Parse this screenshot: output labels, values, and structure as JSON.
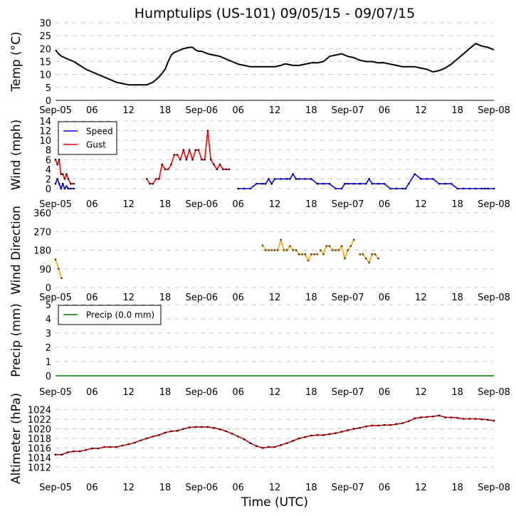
{
  "title": "Humptulips (US-101) 09/05/15 - 09/07/15",
  "xlabel": "Time (UTC)",
  "x_ticks": [
    "Sep-05",
    "06",
    "12",
    "18",
    "Sep-06",
    "06",
    "12",
    "18",
    "Sep-07",
    "06",
    "12",
    "18",
    "Sep-08"
  ],
  "x_range_hours": [
    0,
    72
  ],
  "colors": {
    "temp": "#000000",
    "speed": "#0000ff",
    "gust": "#ff0000",
    "direction": "#ffa500",
    "direction_marker": "#5a3a10",
    "precip": "#008000",
    "altimeter": "#cc0000",
    "altimeter_marker": "#2a0000",
    "grid": "#c8c8c8"
  },
  "chart_data": [
    {
      "type": "line",
      "id": "temp",
      "ylabel": "Temp (°C)",
      "ylim": [
        0,
        30
      ],
      "yticks": [
        0,
        5,
        10,
        15,
        20,
        25,
        30
      ],
      "grid": true,
      "series": [
        {
          "name": "Temp",
          "x": [
            0,
            0.5,
            1,
            1.5,
            2,
            3,
            4,
            5,
            6,
            7,
            8,
            9,
            10,
            11,
            12,
            12.5,
            13,
            14,
            15,
            16,
            17,
            18,
            18.5,
            19,
            19.5,
            20,
            21,
            22,
            22.5,
            23,
            23.5,
            24,
            25,
            26,
            27,
            28,
            29,
            30,
            31,
            32,
            33,
            34,
            35,
            36,
            37,
            37.5,
            38,
            39,
            40,
            41,
            42,
            43,
            44,
            44.5,
            45,
            46,
            47,
            48,
            49,
            50,
            51,
            52,
            53,
            54,
            55,
            56,
            57,
            58,
            59,
            60,
            61,
            62,
            63,
            63.5,
            64,
            65,
            66,
            66.5,
            67,
            67.5,
            68,
            68.5,
            69,
            69.5,
            70,
            71,
            72
          ],
          "values": [
            19.5,
            18,
            17,
            16.5,
            16,
            15,
            13.5,
            12,
            11,
            10,
            9,
            8,
            7,
            6.5,
            6,
            6,
            6,
            6,
            6,
            7,
            9,
            12,
            15,
            17.5,
            18.5,
            19,
            20,
            20.5,
            20.5,
            19.5,
            19,
            19,
            18,
            17.5,
            17,
            16,
            15,
            14,
            13.5,
            13,
            13,
            13,
            13,
            13,
            13.5,
            14,
            14,
            13.5,
            13.5,
            14,
            14.5,
            14.5,
            15,
            16,
            17,
            17.5,
            18,
            17,
            16.5,
            15.5,
            15,
            15,
            14.5,
            14.5,
            14,
            13.5,
            13,
            13,
            13,
            12.5,
            12,
            11,
            11.5,
            12,
            12.5,
            14,
            16,
            17,
            18,
            19,
            20,
            21,
            22,
            21.5,
            21,
            20.5,
            19.5
          ]
        }
      ]
    },
    {
      "type": "line",
      "id": "wind",
      "ylabel": "Wind (mph)",
      "ylim": [
        0,
        14
      ],
      "yticks": [
        0,
        2,
        4,
        6,
        8,
        10,
        12,
        14
      ],
      "grid": true,
      "legend": {
        "placement": "top-left",
        "entries": [
          "Speed",
          "Gust"
        ]
      },
      "series": [
        {
          "name": "Speed",
          "segments": [
            {
              "x": [
                0,
                0.3,
                0.6,
                0.9,
                1.2,
                1.5,
                1.8,
                2.1,
                2.5,
                3
              ],
              "values": [
                1,
                2,
                1,
                0,
                1,
                0,
                0.5,
                0,
                0,
                0
              ]
            },
            {
              "x": [
                30,
                31,
                32,
                33,
                34,
                34.5,
                35,
                35.5,
                36,
                37,
                38,
                38.5,
                39,
                39.5,
                40,
                41,
                42,
                43,
                44,
                45,
                46,
                47,
                47.5,
                48,
                49,
                50,
                51,
                51.5,
                52,
                53,
                54,
                55,
                56,
                57,
                57.5,
                58,
                59,
                60,
                61,
                62,
                63,
                64,
                65,
                66,
                67,
                68,
                69,
                70,
                70.5,
                71,
                72
              ],
              "values": [
                0,
                0,
                0,
                1,
                1,
                1,
                2,
                1,
                2,
                2,
                2,
                2,
                3,
                2,
                2,
                2,
                2,
                1,
                1,
                1,
                0,
                0,
                1,
                1,
                1,
                1,
                1,
                2,
                1,
                1,
                1,
                0,
                0,
                0,
                0,
                1,
                3,
                2,
                2,
                2,
                1,
                1,
                1,
                0,
                0,
                0,
                0,
                0,
                0,
                0,
                0
              ]
            }
          ]
        },
        {
          "name": "Gust",
          "segments": [
            {
              "x": [
                0,
                0.3,
                0.6,
                0.9,
                1.2,
                1.5,
                1.8,
                2.1,
                2.5,
                3
              ],
              "values": [
                6,
                5,
                6,
                3,
                3,
                2,
                3,
                2,
                1,
                1
              ]
            },
            {
              "x": [
                15,
                15.5,
                16,
                16.5,
                17,
                17.5,
                18,
                18.5,
                19,
                19.5,
                20,
                20.5,
                21,
                21.5,
                22,
                22.5,
                23,
                23.5,
                24,
                24.5,
                25,
                25.5,
                26,
                26.5,
                27,
                27.5,
                28,
                28.5
              ],
              "values": [
                2,
                1,
                1,
                2,
                2,
                5,
                4,
                4,
                5,
                7,
                7,
                6,
                8,
                6,
                8,
                6,
                8,
                8,
                6,
                6,
                12,
                6,
                5,
                4,
                5,
                4,
                4,
                4
              ]
            }
          ]
        }
      ]
    },
    {
      "type": "line",
      "id": "direction",
      "ylabel": "Wind Direction",
      "ylim": [
        0,
        360
      ],
      "yticks": [
        0,
        90,
        180,
        270,
        360
      ],
      "grid": true,
      "series": [
        {
          "name": "Direction",
          "segments": [
            {
              "x": [
                0,
                0.5,
                1
              ],
              "values": [
                135,
                90,
                45
              ]
            },
            {
              "x": [
                34,
                34.5,
                35,
                35.5,
                36,
                36.5,
                37,
                37.5,
                38,
                38.5,
                39,
                39.5,
                40,
                40.5,
                41,
                41.5,
                42,
                42.5,
                43
              ],
              "values": [
                203,
                180,
                180,
                180,
                180,
                180,
                230,
                180,
                180,
                200,
                180,
                180,
                160,
                160,
                160,
                130,
                160,
                160,
                160
              ]
            },
            {
              "x": [
                43.5,
                44,
                44.5,
                45,
                45.5,
                46,
                46.5,
                47,
                47.5,
                48,
                48.5,
                49
              ],
              "values": [
                180,
                160,
                200,
                200,
                180,
                180,
                180,
                200,
                140,
                180,
                200,
                230
              ]
            },
            {
              "x": [
                50,
                50.5,
                51,
                51.5,
                52,
                52.5,
                53
              ],
              "values": [
                160,
                160,
                140,
                120,
                160,
                160,
                140
              ]
            }
          ]
        }
      ]
    },
    {
      "type": "line",
      "id": "precip",
      "ylabel": "Precip (mm)",
      "ylim": [
        0,
        5
      ],
      "yticks": [
        0,
        1,
        2,
        3,
        4,
        5
      ],
      "grid": true,
      "legend": {
        "placement": "top-left",
        "entries": [
          "Precip (0.0 mm)"
        ]
      },
      "series": [
        {
          "name": "Precip (0.0 mm)",
          "x": [
            0,
            72
          ],
          "values": [
            0,
            0
          ]
        }
      ]
    },
    {
      "type": "line",
      "id": "altimeter",
      "ylabel": "Altimeter (hPa)",
      "ylim": [
        1011,
        1025
      ],
      "yticks": [
        1012,
        1014,
        1016,
        1018,
        1020,
        1022,
        1024
      ],
      "grid": true,
      "series": [
        {
          "name": "Altimeter",
          "x": [
            0,
            1,
            2,
            3,
            4,
            5,
            6,
            7,
            8,
            9,
            10,
            11,
            12,
            13,
            14,
            15,
            16,
            17,
            18,
            19,
            20,
            21,
            22,
            23,
            24,
            25,
            26,
            27,
            28,
            29,
            30,
            31,
            32,
            33,
            34,
            35,
            36,
            37,
            38,
            39,
            40,
            41,
            42,
            43,
            44,
            45,
            46,
            47,
            48,
            49,
            50,
            51,
            52,
            53,
            54,
            55,
            56,
            57,
            58,
            59,
            60,
            61,
            62,
            63,
            64,
            65,
            66,
            67,
            68,
            69,
            70,
            71,
            72
          ],
          "values": [
            1014.6,
            1014.6,
            1015.1,
            1015.3,
            1015.3,
            1015.6,
            1015.9,
            1015.9,
            1016.2,
            1016.2,
            1016.2,
            1016.5,
            1016.8,
            1017.1,
            1017.6,
            1018,
            1018.4,
            1018.7,
            1019.2,
            1019.5,
            1019.6,
            1020,
            1020.3,
            1020.4,
            1020.4,
            1020.4,
            1020.2,
            1019.9,
            1019.5,
            1019,
            1018.4,
            1017.8,
            1017,
            1016.4,
            1016,
            1016.2,
            1016.2,
            1016.6,
            1017,
            1017.5,
            1018,
            1018.3,
            1018.6,
            1018.7,
            1018.7,
            1018.9,
            1019.1,
            1019.4,
            1019.7,
            1020,
            1020.2,
            1020.5,
            1020.7,
            1020.7,
            1020.8,
            1020.8,
            1021,
            1021.2,
            1021.6,
            1022.2,
            1022.4,
            1022.5,
            1022.6,
            1022.8,
            1022.4,
            1022.4,
            1022.3,
            1022.1,
            1022.1,
            1022.1,
            1022,
            1021.9,
            1021.7
          ]
        }
      ]
    }
  ]
}
